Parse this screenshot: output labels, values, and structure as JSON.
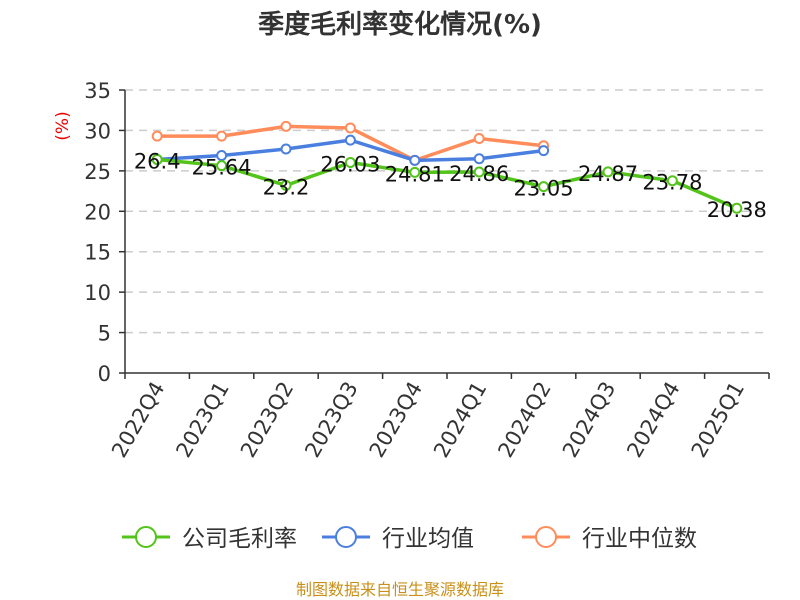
{
  "chart_data": {
    "type": "line",
    "title": "季度毛利率变化情况(%)",
    "ylabel": "(%)",
    "xlabel": "",
    "ylim": [
      0,
      35
    ],
    "yticks": [
      0,
      5,
      10,
      15,
      20,
      25,
      30,
      35
    ],
    "grid": true,
    "legend_position": "bottom",
    "categories": [
      "2022Q4",
      "2023Q1",
      "2023Q2",
      "2023Q3",
      "2023Q4",
      "2024Q1",
      "2024Q2",
      "2024Q3",
      "2024Q4",
      "2025Q1"
    ],
    "series": [
      {
        "name": "公司毛利率",
        "color": "#52c41a",
        "values": [
          26.4,
          25.64,
          23.2,
          26.03,
          24.81,
          24.86,
          23.05,
          24.87,
          23.78,
          20.38
        ],
        "labels": [
          "26.4",
          "25.64",
          "23.2",
          "26.03",
          "24.81",
          "24.86",
          "23.05",
          "24.87",
          "23.78",
          "20.38"
        ]
      },
      {
        "name": "行业均值",
        "color": "#4a7fe0",
        "values": [
          26.4,
          26.9,
          27.7,
          28.8,
          26.3,
          26.5,
          27.5,
          null,
          null,
          null
        ]
      },
      {
        "name": "行业中位数",
        "color": "#ff8c5a",
        "values": [
          29.3,
          29.3,
          30.5,
          30.3,
          26.3,
          29.0,
          28.1,
          null,
          null,
          null
        ]
      }
    ],
    "source": "制图数据来自恒生聚源数据库"
  }
}
